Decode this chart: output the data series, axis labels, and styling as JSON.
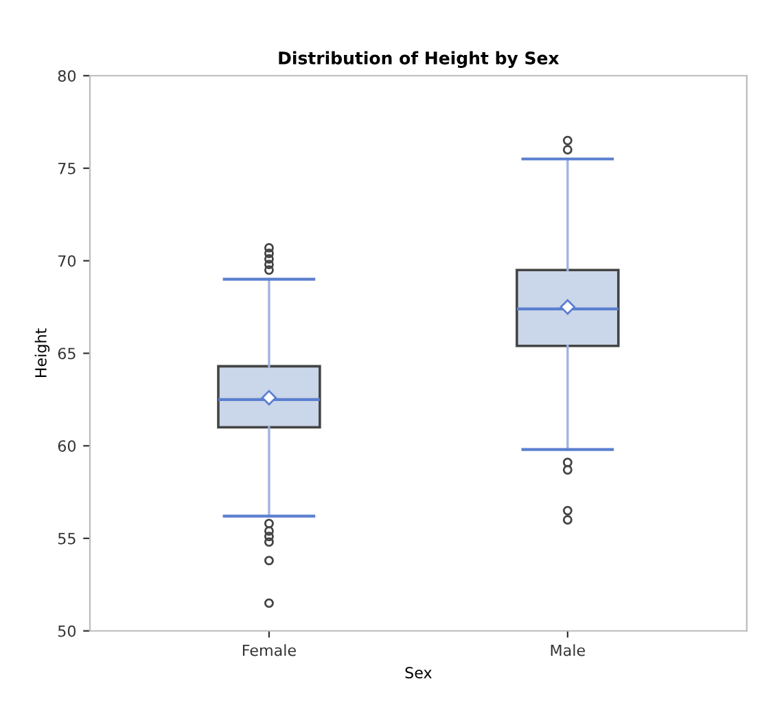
{
  "chart_data": {
    "type": "box",
    "title": "Distribution of Height by Sex",
    "xlabel": "Sex",
    "ylabel": "Height",
    "categories": [
      "Female",
      "Male"
    ],
    "boxes": [
      {
        "low": 56.2,
        "q1": 61.0,
        "median": 62.5,
        "q3": 64.3,
        "high": 69.0,
        "mean": 62.6,
        "outliers": [
          70.7,
          70.4,
          70.1,
          69.8,
          69.5,
          55.8,
          55.4,
          55.1,
          54.8,
          53.8,
          51.5
        ]
      },
      {
        "low": 59.8,
        "q1": 65.4,
        "median": 67.4,
        "q3": 69.5,
        "high": 75.5,
        "mean": 67.5,
        "outliers": [
          76.5,
          76.0,
          59.1,
          58.7,
          56.5,
          56.0
        ]
      }
    ],
    "color": "#cad6e9",
    "ylim": [
      50,
      80
    ],
    "yticks": [
      50,
      55,
      60,
      65,
      70,
      75,
      80
    ],
    "grid": false,
    "legend": false
  }
}
